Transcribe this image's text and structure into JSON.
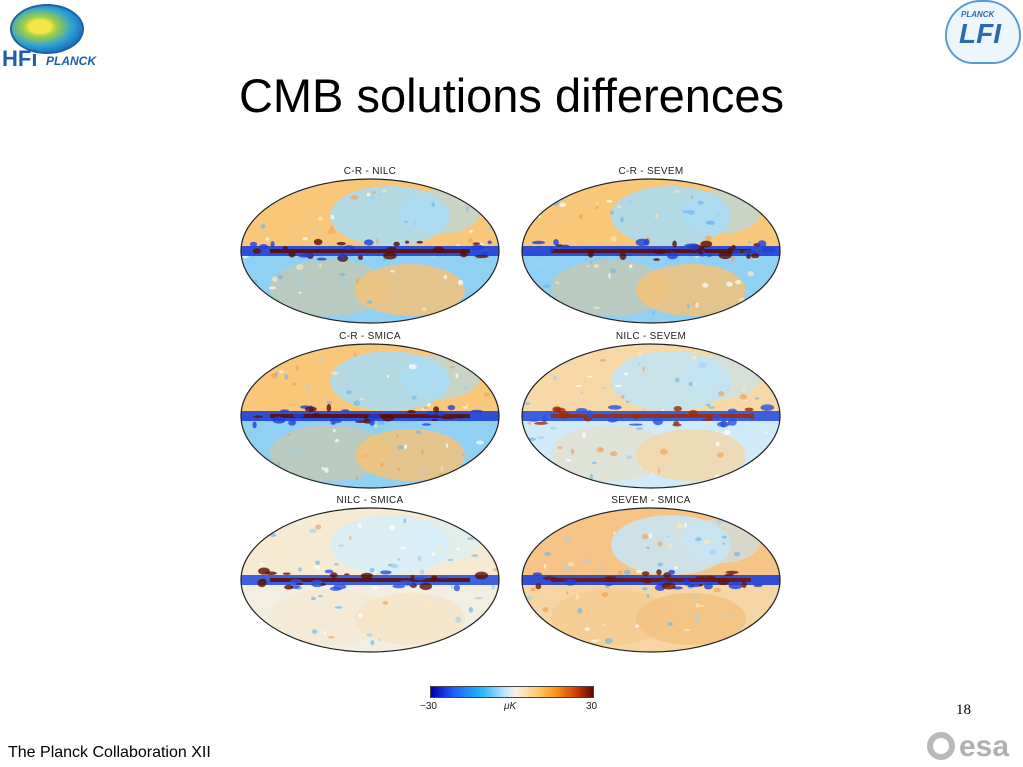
{
  "slide": {
    "title": "CMB solutions differences",
    "page_number": "18",
    "footer": "The Planck Collaboration XII"
  },
  "logos": {
    "hfi": {
      "name": "HFI PLANCK logo",
      "text_main": "HFi",
      "text_sub": "PLANCK"
    },
    "lfi": {
      "name": "Planck LFI logo",
      "text_small": "PLANCK",
      "text_main": "LFI"
    },
    "esa": {
      "name": "esa logo",
      "text": "esa"
    }
  },
  "maps": [
    {
      "label": "C-R - NILC"
    },
    {
      "label": "C-R - SEVEM"
    },
    {
      "label": "C-R - SMICA"
    },
    {
      "label": "NILC - SEVEM"
    },
    {
      "label": "NILC - SMICA"
    },
    {
      "label": "SEVEM - SMICA"
    }
  ],
  "colorbar": {
    "min": "−30",
    "max": "30",
    "unit": "μK",
    "colors": [
      "#0000b0",
      "#1f5fff",
      "#27b9ff",
      "#f6f2e8",
      "#ff9a1a",
      "#d23a00",
      "#5a0a00"
    ]
  }
}
